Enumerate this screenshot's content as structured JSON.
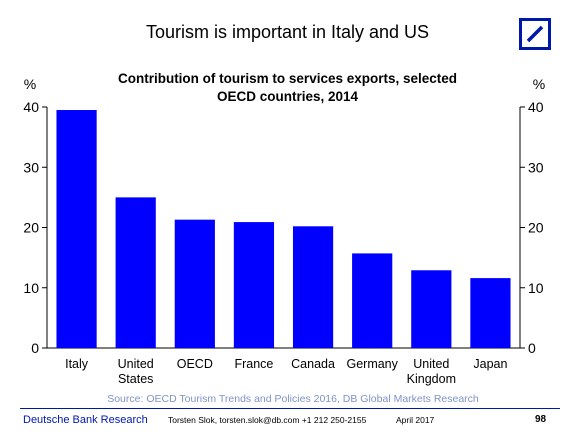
{
  "slide": {
    "title": "Tourism is important in Italy and US",
    "logo_icon": "deutsche-bank-logo-icon",
    "brand_color": "#0018a8"
  },
  "chart_data": {
    "type": "bar",
    "title": "Contribution of tourism to services exports, selected OECD countries, 2014",
    "title_lines": [
      "Contribution of tourism to services exports, selected",
      "OECD countries, 2014"
    ],
    "categories": [
      [
        "Italy"
      ],
      [
        "United",
        "States"
      ],
      [
        "OECD"
      ],
      [
        "France"
      ],
      [
        "Canada"
      ],
      [
        "Germany"
      ],
      [
        "United",
        "Kingdom"
      ],
      [
        "Japan"
      ]
    ],
    "values": [
      39.5,
      25.0,
      21.3,
      20.9,
      20.2,
      15.7,
      12.9,
      11.6
    ],
    "ylabel_left": "%",
    "ylabel_right": "%",
    "ylim": [
      0,
      40
    ],
    "yticks": [
      0,
      10,
      20,
      30,
      40
    ],
    "bar_color": "#0000ff",
    "grid": false,
    "source": "Source: OECD Tourism Trends and Policies 2016, DB Global Markets Research"
  },
  "footer": {
    "org": "Deutsche Bank Research",
    "author": "Torsten Slok, torsten.slok@db.com +1 212 250-2155",
    "date": "April 2017",
    "page": "98"
  }
}
